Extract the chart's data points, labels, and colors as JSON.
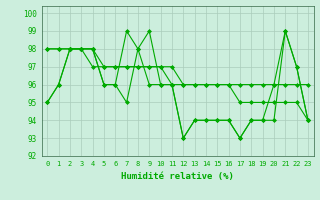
{
  "title": "",
  "xlabel": "Humidité relative (%)",
  "ylabel": "",
  "background_color": "#cceedd",
  "grid_color": "#aaccbb",
  "line_color": "#00aa00",
  "xlim": [
    -0.5,
    23.5
  ],
  "ylim": [
    92,
    100.4
  ],
  "yticks": [
    92,
    93,
    94,
    95,
    96,
    97,
    98,
    99,
    100
  ],
  "xticks": [
    0,
    1,
    2,
    3,
    4,
    5,
    6,
    7,
    8,
    9,
    10,
    11,
    12,
    13,
    14,
    15,
    16,
    17,
    18,
    19,
    20,
    21,
    22,
    23
  ],
  "series": [
    [
      95,
      96,
      98,
      98,
      98,
      96,
      96,
      95,
      98,
      99,
      96,
      96,
      93,
      94,
      94,
      94,
      94,
      93,
      94,
      94,
      94,
      99,
      97,
      94
    ],
    [
      95,
      96,
      98,
      98,
      98,
      96,
      96,
      99,
      98,
      96,
      96,
      96,
      93,
      94,
      94,
      94,
      94,
      93,
      94,
      94,
      96,
      99,
      97,
      94
    ],
    [
      98,
      98,
      98,
      98,
      98,
      97,
      97,
      97,
      97,
      97,
      97,
      96,
      96,
      96,
      96,
      96,
      96,
      96,
      96,
      96,
      96,
      96,
      96,
      96
    ],
    [
      98,
      98,
      98,
      98,
      97,
      97,
      97,
      97,
      97,
      97,
      97,
      97,
      96,
      96,
      96,
      96,
      96,
      95,
      95,
      95,
      95,
      95,
      95,
      94
    ]
  ]
}
